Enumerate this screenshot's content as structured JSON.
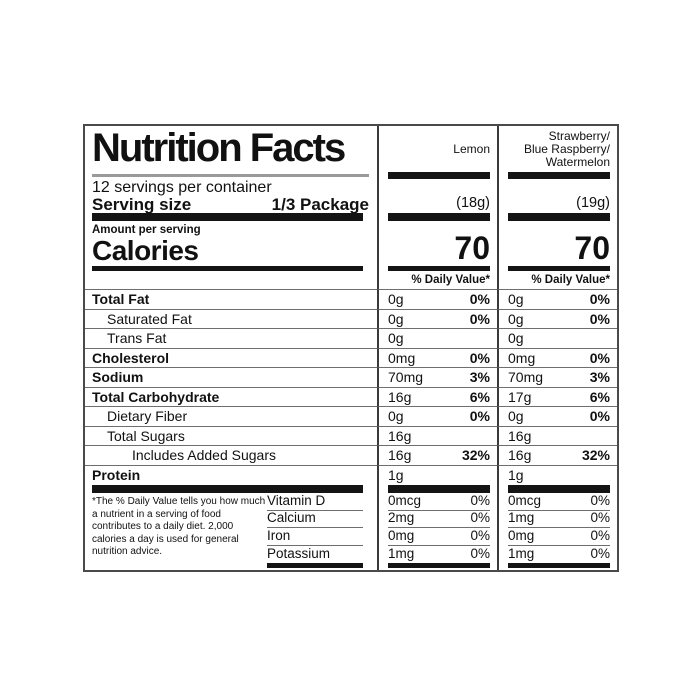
{
  "colors": {
    "text": "#111111",
    "bar": "#141414",
    "hairline": "#6e6e6e",
    "title_rule": "#9a9a9a"
  },
  "label": {
    "title": "Nutrition Facts",
    "servings_per_container": "12 servings per container",
    "serving_size_label": "Serving size",
    "serving_size_value": "1/3 Package",
    "amount_per_serving": "Amount per serving",
    "calories_label": "Calories"
  },
  "columns": [
    {
      "flavor": "Lemon",
      "weight": "(18g)",
      "calories": "70",
      "dv_header": "% Daily Value*"
    },
    {
      "flavor": "Strawberry/\nBlue Raspberry/\nWatermelon",
      "weight": "(19g)",
      "calories": "70",
      "dv_header": "% Daily Value*"
    }
  ],
  "nutrients": [
    {
      "name": "Total Fat",
      "c1a": "0g",
      "c1d": "0%",
      "c2a": "0g",
      "c2d": "0%"
    },
    {
      "name": "Saturated Fat",
      "c1a": "0g",
      "c1d": "0%",
      "c2a": "0g",
      "c2d": "0%"
    },
    {
      "name": "Trans Fat",
      "c1a": "0g",
      "c1d": "",
      "c2a": "0g",
      "c2d": ""
    },
    {
      "name": "Cholesterol",
      "c1a": "0mg",
      "c1d": "0%",
      "c2a": "0mg",
      "c2d": "0%"
    },
    {
      "name": "Sodium",
      "c1a": "70mg",
      "c1d": "3%",
      "c2a": "70mg",
      "c2d": "3%"
    },
    {
      "name": "Total Carbohydrate",
      "c1a": "16g",
      "c1d": "6%",
      "c2a": "17g",
      "c2d": "6%"
    },
    {
      "name": "Dietary Fiber",
      "c1a": "0g",
      "c1d": "0%",
      "c2a": "0g",
      "c2d": "0%"
    },
    {
      "name": "Total Sugars",
      "c1a": "16g",
      "c1d": "",
      "c2a": "16g",
      "c2d": ""
    },
    {
      "name": "Includes Added Sugars",
      "c1a": "16g",
      "c1d": "32%",
      "c2a": "16g",
      "c2d": "32%"
    },
    {
      "name": "Protein",
      "c1a": "1g",
      "c1d": "",
      "c2a": "1g",
      "c2d": ""
    }
  ],
  "vitamins": [
    {
      "name": "Vitamin D",
      "c1a": "0mcg",
      "c1d": "0%",
      "c2a": "0mcg",
      "c2d": "0%"
    },
    {
      "name": "Calcium",
      "c1a": "2mg",
      "c1d": "0%",
      "c2a": "1mg",
      "c2d": "0%"
    },
    {
      "name": "Iron",
      "c1a": "0mg",
      "c1d": "0%",
      "c2a": "0mg",
      "c2d": "0%"
    },
    {
      "name": "Potassium",
      "c1a": "1mg",
      "c1d": "0%",
      "c2a": "1mg",
      "c2d": "0%"
    }
  ],
  "footnote": "*The % Daily Value tells you how much a nutrient in a serving of food contributes to a daily diet. 2,000 calories a day is used for general nutrition advice."
}
